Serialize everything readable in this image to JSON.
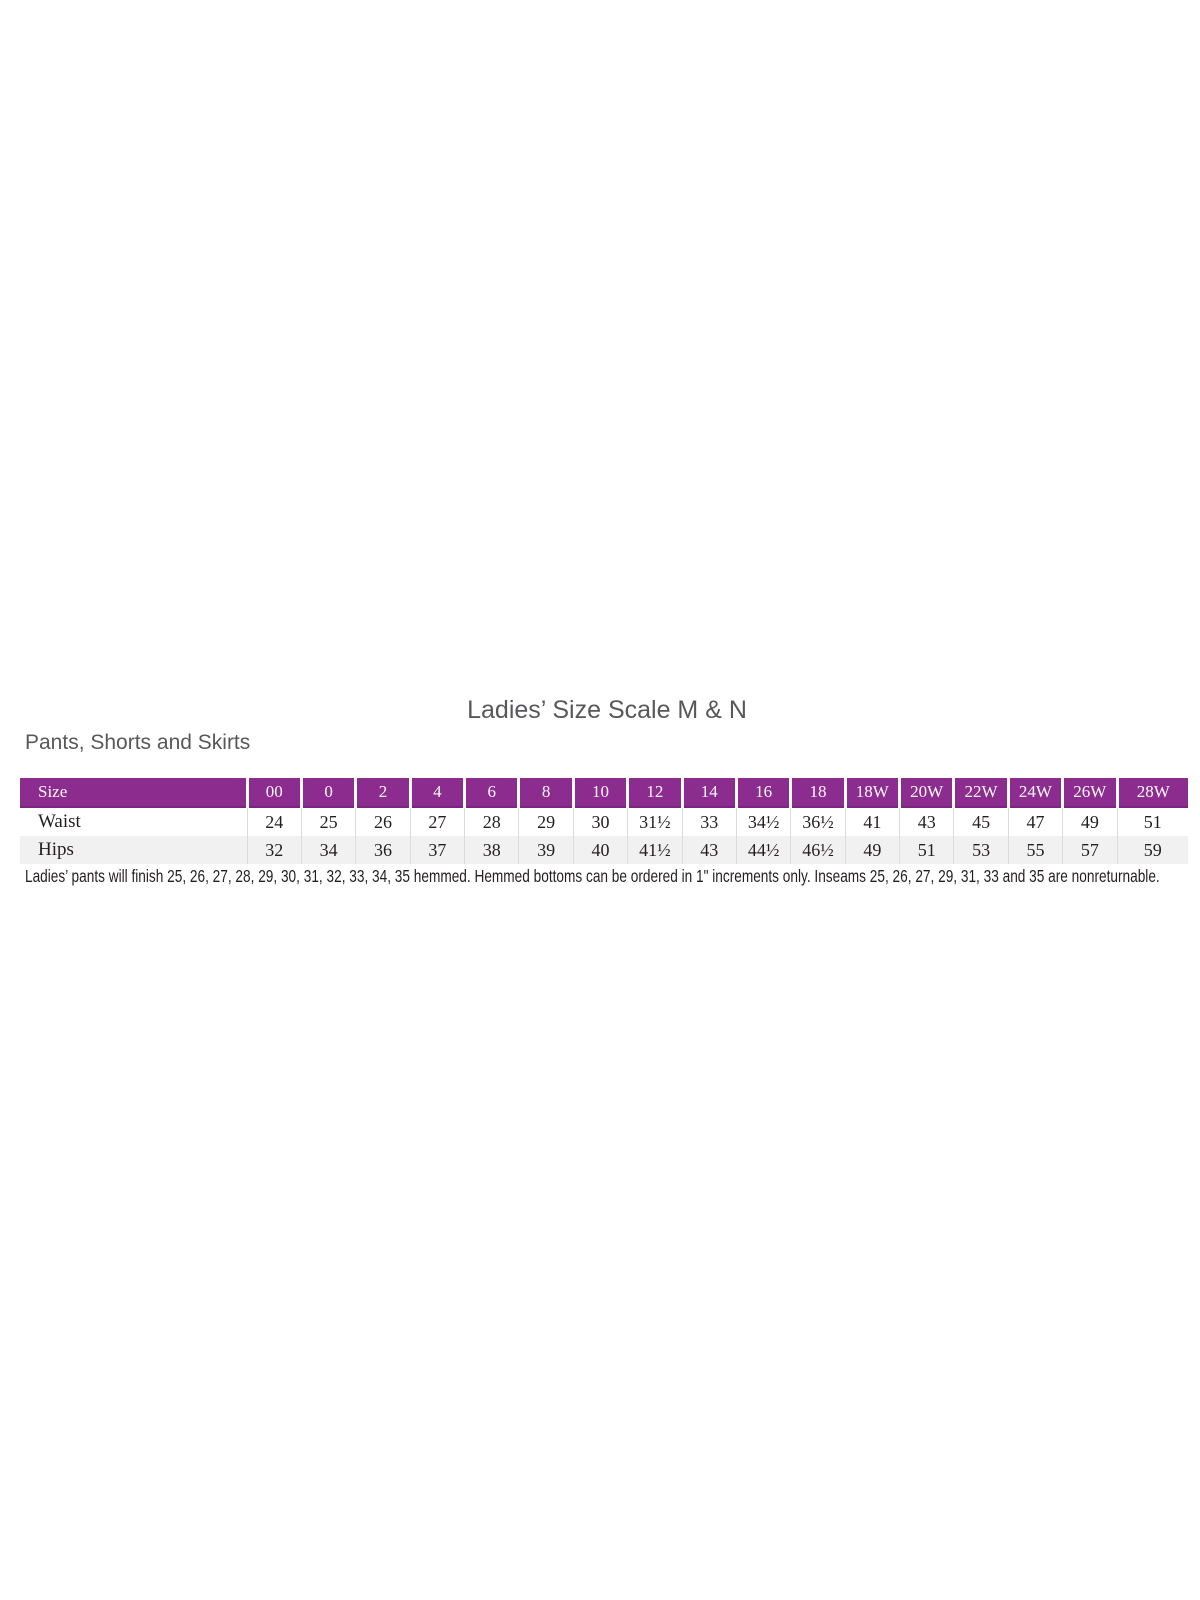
{
  "page": {
    "title": "Ladies’ Size Scale M & N",
    "subtitle": "Pants, Shorts and Skirts",
    "note": "Ladies’ pants will finish 25, 26, 27, 28, 29, 30, 31, 32, 33, 34, 35 hemmed. Hemmed bottoms can be ordered in 1\" increments only. Inseams 25, 26, 27, 29, 31, 33 and 35 are nonreturnable."
  },
  "colors": {
    "header_bg": "#8d2c8f",
    "header_text": "#ffffff",
    "alt_row_bg": "#f2f1f1",
    "body_text": "#231f20",
    "heading_text": "#57585a"
  },
  "table": {
    "type": "table",
    "columns": [
      "Size",
      "00",
      "0",
      "2",
      "4",
      "6",
      "8",
      "10",
      "12",
      "14",
      "16",
      "18",
      "18W",
      "20W",
      "22W",
      "24W",
      "26W",
      "28W"
    ],
    "rows": [
      {
        "label": "Waist",
        "values": [
          "24",
          "25",
          "26",
          "27",
          "28",
          "29",
          "30",
          "31½",
          "33",
          "34½",
          "36½",
          "41",
          "43",
          "45",
          "47",
          "49",
          "51"
        ]
      },
      {
        "label": "Hips",
        "values": [
          "32",
          "34",
          "36",
          "37",
          "38",
          "39",
          "40",
          "41½",
          "43",
          "44½",
          "46½",
          "49",
          "51",
          "53",
          "55",
          "57",
          "59"
        ]
      }
    ]
  }
}
